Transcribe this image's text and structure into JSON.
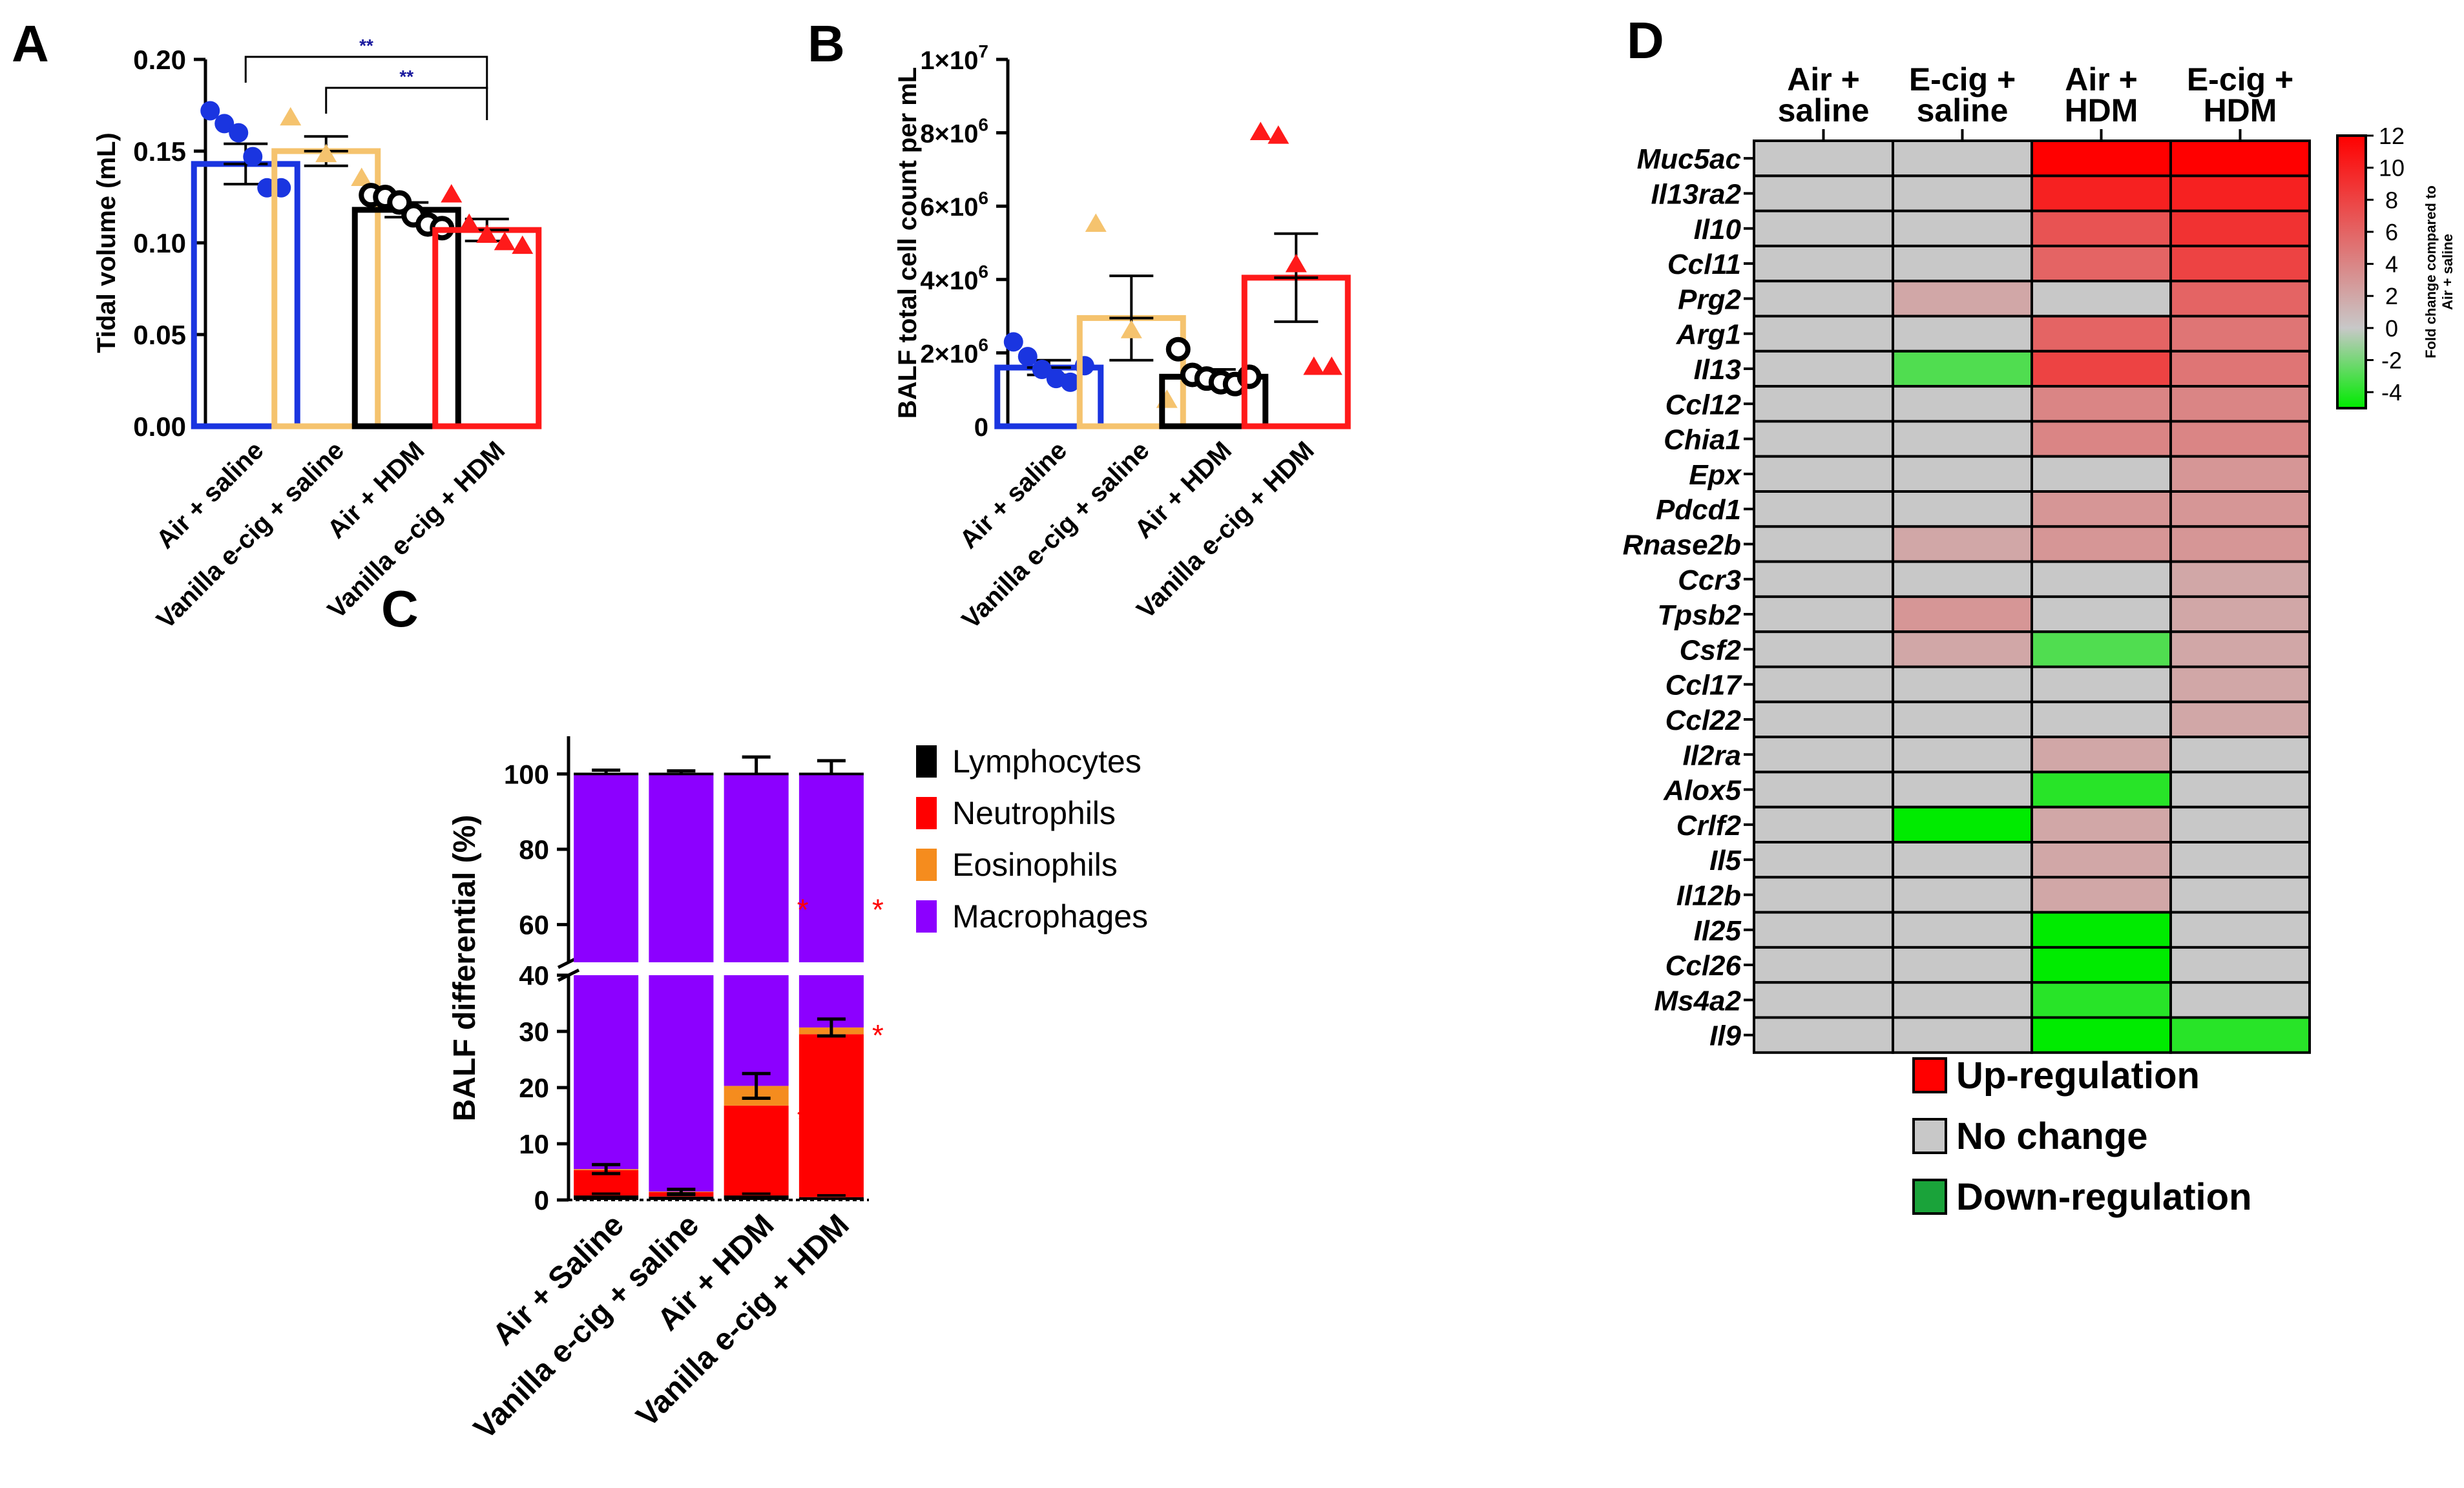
{
  "chart_data": [
    {
      "panel": "A",
      "type": "bar",
      "ylabel": "Tidal volume (mL)",
      "ylim": [
        0,
        0.2
      ],
      "yticks": [
        "0.00",
        "0.05",
        "0.10",
        "0.15",
        "0.20"
      ],
      "categories": [
        "Air + saline",
        "Vanilla e-cig + saline",
        "Air + HDM",
        "Vanilla e-cig + HDM"
      ],
      "values": [
        0.143,
        0.15,
        0.118,
        0.107
      ],
      "errors": [
        0.011,
        0.008,
        0.004,
        0.006
      ],
      "colors": [
        "#1a35e0",
        "#f5c36e",
        "#000000",
        "#ff1a1a"
      ],
      "markers": [
        "circle",
        "triangle",
        "circle",
        "triangle"
      ],
      "points": [
        [
          0.172,
          0.165,
          0.16,
          0.147,
          0.13,
          0.13
        ],
        [
          0.168,
          0.148,
          0.135
        ],
        [
          0.126,
          0.125,
          0.122,
          0.115,
          0.11,
          0.108
        ],
        [
          0.126,
          0.11,
          0.104,
          0.1,
          0.098
        ]
      ],
      "significance": [
        {
          "from": 0,
          "to": 3,
          "label": "**"
        },
        {
          "from": 1,
          "to": 3,
          "label": "**"
        }
      ]
    },
    {
      "panel": "B",
      "type": "bar",
      "ylabel": "BALF total cell count per mL",
      "ylim": [
        0,
        10000000
      ],
      "yticks": [
        {
          "v": 0,
          "m": "0",
          "e": ""
        },
        {
          "v": 2000000,
          "m": "2×10",
          "e": "6"
        },
        {
          "v": 4000000,
          "m": "4×10",
          "e": "6"
        },
        {
          "v": 6000000,
          "m": "6×10",
          "e": "6"
        },
        {
          "v": 8000000,
          "m": "8×10",
          "e": "6"
        },
        {
          "v": 10000000,
          "m": "1×10",
          "e": "7"
        }
      ],
      "categories": [
        "Air + saline",
        "Vanilla e-cig + saline",
        "Air + HDM",
        "Vanilla e-cig + HDM"
      ],
      "values": [
        1600000,
        2950000,
        1350000,
        4050000
      ],
      "errors": [
        200000,
        1150000,
        200000,
        1200000
      ],
      "colors": [
        "#1a35e0",
        "#f5c36e",
        "#000000",
        "#ff1a1a"
      ],
      "markers": [
        "circle",
        "triangle",
        "circle",
        "triangle"
      ],
      "points": [
        [
          2300000,
          1900000,
          1550000,
          1300000,
          1200000,
          1650000
        ],
        [
          5500000,
          2600000,
          700000
        ],
        [
          2100000,
          1400000,
          1300000,
          1200000,
          1150000,
          1350000
        ],
        [
          8000000,
          7900000,
          4400000,
          1600000,
          1600000
        ]
      ]
    },
    {
      "panel": "C",
      "type": "stacked-bar",
      "ylabel": "BALF differential (%)",
      "axis_break": [
        40,
        50
      ],
      "lower_range": [
        0,
        40
      ],
      "upper_range": [
        50,
        110
      ],
      "lower_ticks": [
        0,
        10,
        20,
        30,
        40
      ],
      "upper_ticks": [
        60,
        80,
        100
      ],
      "categories": [
        "Air + Saline",
        "Vanilla e-cig + saline",
        "Air + HDM",
        "Vanilla e-cig + HDM"
      ],
      "series": [
        {
          "name": "Lymphocytes",
          "color": "#000000",
          "values": [
            0.8,
            0.6,
            0.8,
            0.5
          ]
        },
        {
          "name": "Neutrophils",
          "color": "#ff0000",
          "values": [
            4.5,
            0.8,
            16.0,
            29.0
          ]
        },
        {
          "name": "Eosinophils",
          "color": "#f58c1e",
          "values": [
            0.2,
            0.1,
            3.5,
            1.2
          ]
        },
        {
          "name": "Macrophages",
          "color": "#8c00ff",
          "values": [
            94.5,
            98.5,
            79.7,
            69.3
          ]
        }
      ],
      "totals_error": [
        1.0,
        0.8,
        4.5,
        3.5
      ],
      "mid_errors": [
        0.8,
        0.4,
        2.2,
        1.5
      ],
      "significance_marks": [
        {
          "bar": 2,
          "level": 65,
          "label": "*"
        },
        {
          "bar": 3,
          "level": 65,
          "label": "*"
        },
        {
          "bar": 2,
          "level": 15,
          "label": "*"
        },
        {
          "bar": 3,
          "level": 30,
          "label": "*"
        }
      ]
    },
    {
      "panel": "D",
      "type": "heatmap",
      "columns": [
        "Air + saline",
        "E-cig + saline",
        "Air + HDM",
        "E-cig + HDM"
      ],
      "rows": [
        "Muc5ac",
        "Il13ra2",
        "Il10",
        "Ccl11",
        "Prg2",
        "Arg1",
        "Il13",
        "Ccl12",
        "Chia1",
        "Epx",
        "Pdcd1",
        "Rnase2b",
        "Ccr3",
        "Tpsb2",
        "Csf2",
        "Ccl17",
        "Ccl22",
        "Il2ra",
        "Alox5",
        "Crlf2",
        "Il5",
        "Il12b",
        "Il25",
        "Ccl26",
        "Ms4a2",
        "Il9"
      ],
      "values": [
        [
          0,
          0,
          12,
          12
        ],
        [
          0,
          0,
          10,
          10
        ],
        [
          0,
          0,
          7,
          9
        ],
        [
          0,
          0,
          6,
          8
        ],
        [
          0,
          2,
          0,
          6
        ],
        [
          0,
          0,
          6,
          5
        ],
        [
          0,
          -3,
          8,
          5
        ],
        [
          0,
          0,
          4,
          4
        ],
        [
          0,
          0,
          4,
          4
        ],
        [
          0,
          0,
          0,
          3
        ],
        [
          0,
          0,
          3,
          3
        ],
        [
          0,
          2,
          3,
          3
        ],
        [
          0,
          0,
          0,
          2
        ],
        [
          0,
          3,
          0,
          2
        ],
        [
          0,
          2,
          -3,
          2
        ],
        [
          0,
          0,
          0,
          2
        ],
        [
          0,
          0,
          0,
          2
        ],
        [
          0,
          0,
          2,
          0
        ],
        [
          0,
          0,
          -4,
          0
        ],
        [
          0,
          -5,
          2,
          0
        ],
        [
          0,
          0,
          2,
          0
        ],
        [
          0,
          0,
          2,
          0
        ],
        [
          0,
          0,
          -5,
          0
        ],
        [
          0,
          0,
          -5,
          0
        ],
        [
          0,
          0,
          -4,
          0
        ],
        [
          0,
          0,
          -5,
          -4
        ]
      ],
      "colorbar": {
        "label_line1": "Fold change compared to",
        "label_line2": "Air + saline",
        "ticks": [
          12,
          10,
          8,
          6,
          4,
          2,
          0,
          -2,
          -4
        ],
        "range": [
          -5,
          12
        ]
      },
      "legend": [
        {
          "label": "Up-regulation",
          "color": "#ff0000"
        },
        {
          "label": "No change",
          "color": "#c8c8c8"
        },
        {
          "label": "Down-regulation",
          "color": "#1aa33a"
        }
      ]
    }
  ],
  "panels": {
    "A": "A",
    "B": "B",
    "C": "C",
    "D": "D"
  }
}
